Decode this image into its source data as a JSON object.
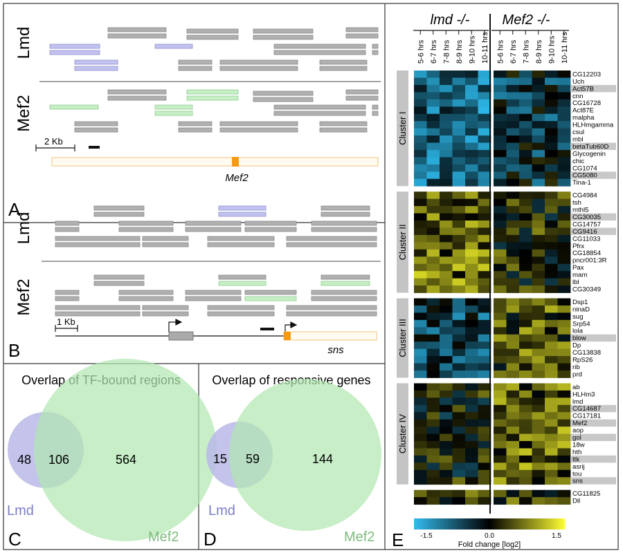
{
  "panelA": {
    "letter": "A",
    "track_labels": [
      "Lmd",
      "Mef2"
    ],
    "scale_label": "2 Kb",
    "gene_label": "Mef2"
  },
  "panelB": {
    "letter": "B",
    "track_labels": [
      "Lmd",
      "Mef2"
    ],
    "scale_label": "1 Kb",
    "gene_label": "sns"
  },
  "panelC": {
    "letter": "C",
    "title": "Overlap of TF-bound regions",
    "lmd_only": "48",
    "overlap": "106",
    "mef2_only": "564",
    "lmd_label": "Lmd",
    "mef2_label": "Mef2"
  },
  "panelD": {
    "letter": "D",
    "title": "Overlap of responsive genes",
    "lmd_only": "15",
    "overlap": "59",
    "mef2_only": "144",
    "lmd_label": "Lmd",
    "mef2_label": "Mef2"
  },
  "panelE": {
    "letter": "E",
    "mutant_headers": [
      "lmd -/-",
      "Mef2 -/-"
    ],
    "timepoints": [
      "5-6 hrs",
      "6-7 hrs",
      "7-8 hrs",
      "8-9 hrs",
      "9-10 hrs",
      "10-11 hrs"
    ],
    "colorbar": {
      "title": "Fold change [log2]",
      "ticks": [
        "-1.5",
        "0.0",
        "1.5"
      ],
      "low_color": "#33bbee",
      "mid_color": "#000000",
      "high_color": "#ffff33"
    },
    "clusters": [
      {
        "name": "Cluster I",
        "genes": [
          {
            "name": "CG12203",
            "highlight": false
          },
          {
            "name": "Uch",
            "highlight": false
          },
          {
            "name": "Act57B",
            "highlight": true
          },
          {
            "name": "cnn",
            "highlight": false
          },
          {
            "name": "CG16728",
            "highlight": false
          },
          {
            "name": "Act87E",
            "highlight": false
          },
          {
            "name": "malpha",
            "highlight": false
          },
          {
            "name": "HLHmgamma",
            "highlight": false
          },
          {
            "name": "csul",
            "highlight": false
          },
          {
            "name": "mbl",
            "highlight": false
          },
          {
            "name": "betaTub60D",
            "highlight": true
          },
          {
            "name": "Glycogenin",
            "highlight": false
          },
          {
            "name": "chic",
            "highlight": false
          },
          {
            "name": "CG1074",
            "highlight": false
          },
          {
            "name": "CG5080",
            "highlight": true
          },
          {
            "name": "Tina-1",
            "highlight": false
          }
        ]
      },
      {
        "name": "Cluster II",
        "genes": [
          {
            "name": "CG4984",
            "highlight": false
          },
          {
            "name": "tsh",
            "highlight": false
          },
          {
            "name": "mthl5",
            "highlight": false
          },
          {
            "name": "CG30035",
            "highlight": true
          },
          {
            "name": "CG14757",
            "highlight": false
          },
          {
            "name": "CG9416",
            "highlight": true
          },
          {
            "name": "CG11033",
            "highlight": false
          },
          {
            "name": "Pfrx",
            "highlight": false
          },
          {
            "name": "CG18854",
            "highlight": false
          },
          {
            "name": "pncr001:3R",
            "highlight": false
          },
          {
            "name": "Pax",
            "highlight": false
          },
          {
            "name": "mam",
            "highlight": false
          },
          {
            "name": "lbl",
            "highlight": false
          },
          {
            "name": "CG30349",
            "highlight": false
          }
        ]
      },
      {
        "name": "Cluster III",
        "genes": [
          {
            "name": "Dsp1",
            "highlight": false
          },
          {
            "name": "ninaD",
            "highlight": false
          },
          {
            "name": "sug",
            "highlight": false
          },
          {
            "name": "Srp54",
            "highlight": false
          },
          {
            "name": "lola",
            "highlight": false
          },
          {
            "name": "blow",
            "highlight": true
          },
          {
            "name": "Dp",
            "highlight": false
          },
          {
            "name": "CG13838",
            "highlight": false
          },
          {
            "name": "RpS26",
            "highlight": false
          },
          {
            "name": "rib",
            "highlight": false
          },
          {
            "name": "prd",
            "highlight": false
          }
        ]
      },
      {
        "name": "Cluster IV",
        "genes": [
          {
            "name": "ab",
            "highlight": false
          },
          {
            "name": "HLHm3",
            "highlight": false
          },
          {
            "name": "lmd",
            "highlight": false
          },
          {
            "name": "CG14687",
            "highlight": true
          },
          {
            "name": "CG17181",
            "highlight": false
          },
          {
            "name": "Mef2",
            "highlight": true
          },
          {
            "name": "aop",
            "highlight": false
          },
          {
            "name": "gol",
            "highlight": true
          },
          {
            "name": "18w",
            "highlight": false
          },
          {
            "name": "hth",
            "highlight": false
          },
          {
            "name": "ttk",
            "highlight": true
          },
          {
            "name": "asrij",
            "highlight": false
          },
          {
            "name": "tou",
            "highlight": false
          },
          {
            "name": "sns",
            "highlight": true
          }
        ]
      },
      {
        "name": "",
        "genes": [
          {
            "name": "CG11825",
            "highlight": false
          },
          {
            "name": "Dll",
            "highlight": false
          }
        ]
      }
    ]
  }
}
